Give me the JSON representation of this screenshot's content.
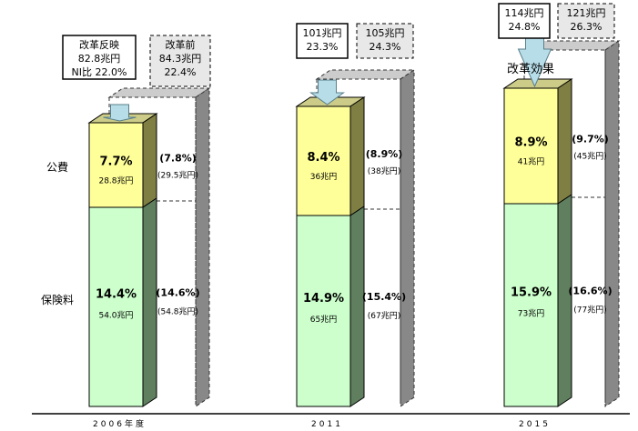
{
  "chart_data": {
    "type": "bar",
    "stacked": true,
    "categories": [
      "2006年度",
      "2011",
      "2015"
    ],
    "row_labels": {
      "public": "公費",
      "insurance": "保険料"
    },
    "series": [
      {
        "name": "保険料",
        "percent_labels": [
          "14.4%",
          "14.9%",
          "15.9%"
        ],
        "values": [
          54.0,
          65,
          73
        ],
        "value_labels": [
          "54.0兆円",
          "65兆円",
          "73兆円"
        ],
        "color": "#ccffcc",
        "side_color": "#5f7f5f"
      },
      {
        "name": "公費",
        "percent_labels": [
          "7.7%",
          "8.4%",
          "8.9%"
        ],
        "values": [
          28.8,
          36,
          41
        ],
        "value_labels": [
          "28.8兆円",
          "36兆円",
          "41兆円"
        ],
        "color": "#ffff99",
        "side_color": "#7f7f44"
      }
    ],
    "before_reform": {
      "insurance_percent": [
        "(14.6%)",
        "(15.4%)",
        "(16.6%)"
      ],
      "insurance_values": [
        "(54.8兆円)",
        "(67兆円)",
        "(77兆円)"
      ],
      "public_percent": [
        "(7.8%)",
        "(8.9%)",
        "(9.7%)"
      ],
      "public_values": [
        "(29.5兆円)",
        "(38兆円)",
        "(45兆円)"
      ]
    },
    "totals_after": [
      {
        "lines": [
          "改革反映",
          "82.8兆円",
          "NI比  22.0%"
        ]
      },
      {
        "lines": [
          "101兆円",
          "23.3%"
        ]
      },
      {
        "lines": [
          "114兆円",
          "24.8%"
        ]
      }
    ],
    "totals_before": [
      {
        "lines": [
          "改革前",
          "84.3兆円",
          "22.4%"
        ]
      },
      {
        "lines": [
          "105兆円",
          "24.3%"
        ]
      },
      {
        "lines": [
          "121兆円",
          "26.3%"
        ]
      }
    ],
    "annotation": "改革効果"
  }
}
